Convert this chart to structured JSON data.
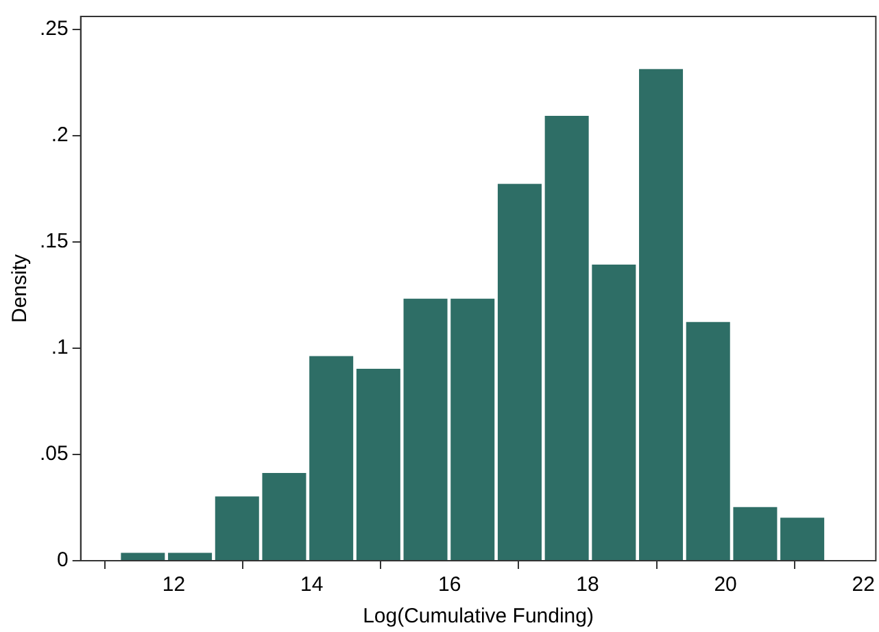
{
  "chart_data": {
    "type": "histogram",
    "xlabel": "Log(Cumulative Funding)",
    "ylabel": "Density",
    "color": "#2e6e66",
    "bins": [
      11.21,
      11.893,
      12.576,
      13.259,
      13.942,
      14.625,
      15.308,
      15.991,
      16.674,
      17.357,
      18.04,
      18.723,
      19.406,
      20.089,
      20.772,
      21.455
    ],
    "values": [
      0.0045,
      0.0045,
      0.031,
      0.042,
      0.097,
      0.091,
      0.124,
      0.124,
      0.178,
      0.21,
      0.14,
      0.232,
      0.113,
      0.026,
      0.021
    ],
    "xlim": [
      10.65,
      22.18
    ],
    "xticks": [
      12,
      14,
      16,
      18,
      20,
      22
    ],
    "ylim": [
      0,
      0.256
    ],
    "yticks": [
      {
        "value": 0,
        "label": "0"
      },
      {
        "value": 0.05,
        "label": ".05"
      },
      {
        "value": 0.1,
        "label": ".1"
      },
      {
        "value": 0.15,
        "label": ".15"
      },
      {
        "value": 0.2,
        "label": ".2"
      },
      {
        "value": 0.25,
        "label": ".25"
      }
    ],
    "grid": false,
    "legend": false
  }
}
